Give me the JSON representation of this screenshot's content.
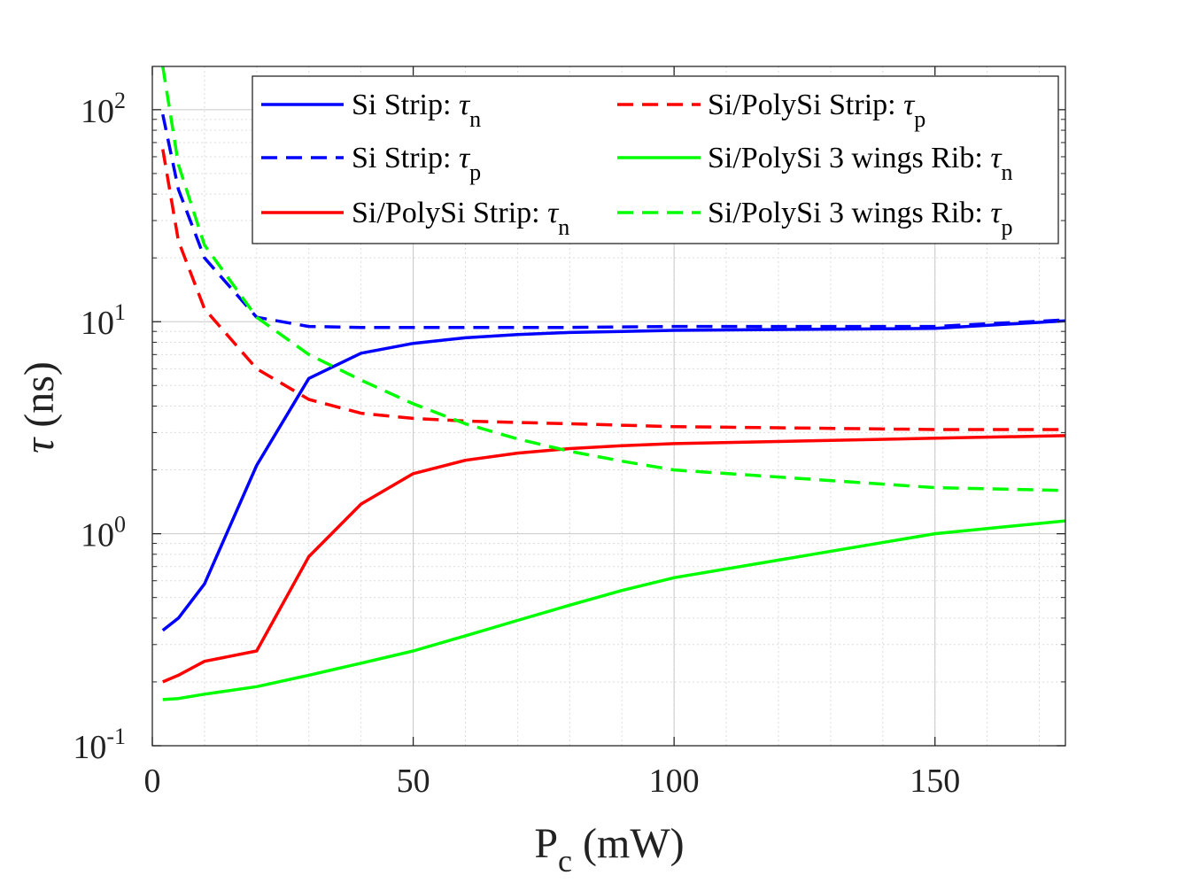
{
  "chart_data": {
    "type": "line",
    "xlabel": {
      "main": "P",
      "sub": "c",
      "rest": " (mW)"
    },
    "ylabel": {
      "symbol": "τ",
      "rest": " (ns)"
    },
    "xlim": [
      0,
      175
    ],
    "ylim": [
      0.1,
      160
    ],
    "yscale": "log",
    "grid": true,
    "minor_grid": true,
    "legend_position": "top-right",
    "x_ticks": [
      {
        "value": 0,
        "label": "0"
      },
      {
        "value": 50,
        "label": "50"
      },
      {
        "value": 100,
        "label": "100"
      },
      {
        "value": 150,
        "label": "150"
      }
    ],
    "y_ticks": [
      {
        "value": 0.1,
        "base": "10",
        "exp": "-1"
      },
      {
        "value": 1,
        "base": "10",
        "exp": "0"
      },
      {
        "value": 10,
        "base": "10",
        "exp": "1"
      },
      {
        "value": 100,
        "base": "10",
        "exp": "2"
      }
    ],
    "series": [
      {
        "name": "Si Strip: τn",
        "label_text": "Si Strip: ",
        "label_symbol": "τ",
        "label_sub": "n",
        "color": "#0000ff",
        "dashed": false,
        "x": [
          2,
          5,
          10,
          20,
          30,
          40,
          50,
          60,
          70,
          80,
          90,
          100,
          150,
          175
        ],
        "y": [
          0.35,
          0.4,
          0.58,
          2.1,
          5.4,
          7.1,
          7.9,
          8.4,
          8.7,
          8.9,
          9.0,
          9.1,
          9.3,
          10.1
        ]
      },
      {
        "name": "Si Strip: τp",
        "label_text": "Si Strip: ",
        "label_symbol": "τ",
        "label_sub": "p",
        "color": "#0000ff",
        "dashed": true,
        "x": [
          2,
          5,
          10,
          20,
          30,
          40,
          50,
          60,
          80,
          100,
          150,
          175
        ],
        "y": [
          95,
          42,
          20,
          10.5,
          9.5,
          9.4,
          9.4,
          9.4,
          9.4,
          9.5,
          9.5,
          10.2
        ]
      },
      {
        "name": "Si/PolySi Strip: τn",
        "label_text": "Si/PolySi Strip: ",
        "label_symbol": "τ",
        "label_sub": "n",
        "color": "#ff0000",
        "dashed": false,
        "x": [
          2,
          5,
          10,
          20,
          30,
          40,
          50,
          60,
          70,
          80,
          90,
          100,
          150,
          175
        ],
        "y": [
          0.2,
          0.215,
          0.25,
          0.28,
          0.78,
          1.38,
          1.92,
          2.22,
          2.4,
          2.52,
          2.6,
          2.66,
          2.82,
          2.9
        ]
      },
      {
        "name": "Si/PolySi Strip: τp",
        "label_text": "Si/PolySi Strip: ",
        "label_symbol": "τ",
        "label_sub": "p",
        "color": "#ff0000",
        "dashed": true,
        "x": [
          2,
          5,
          10,
          20,
          30,
          40,
          50,
          60,
          80,
          100,
          150,
          175
        ],
        "y": [
          65,
          24,
          11.5,
          6.0,
          4.3,
          3.7,
          3.5,
          3.4,
          3.3,
          3.2,
          3.1,
          3.1
        ]
      },
      {
        "name": "Si/PolySi 3 wings Rib: τn",
        "label_text": "Si/PolySi 3 wings Rib: ",
        "label_symbol": "τ",
        "label_sub": "n",
        "color": "#00ff00",
        "dashed": false,
        "x": [
          2,
          5,
          10,
          20,
          30,
          40,
          50,
          60,
          70,
          80,
          90,
          100,
          150,
          175
        ],
        "y": [
          0.165,
          0.167,
          0.175,
          0.19,
          0.215,
          0.245,
          0.28,
          0.33,
          0.39,
          0.46,
          0.54,
          0.62,
          1.0,
          1.15
        ]
      },
      {
        "name": "Si/PolySi 3 wings Rib: τp",
        "label_text": "Si/PolySi 3 wings Rib: ",
        "label_symbol": "τ",
        "label_sub": "p",
        "color": "#00ff00",
        "dashed": true,
        "x": [
          2,
          5,
          10,
          20,
          30,
          40,
          50,
          60,
          70,
          80,
          90,
          100,
          150,
          175
        ],
        "y": [
          160,
          55,
          23,
          10.5,
          7.0,
          5.3,
          4.1,
          3.3,
          2.8,
          2.45,
          2.2,
          2.0,
          1.65,
          1.6
        ]
      }
    ]
  }
}
